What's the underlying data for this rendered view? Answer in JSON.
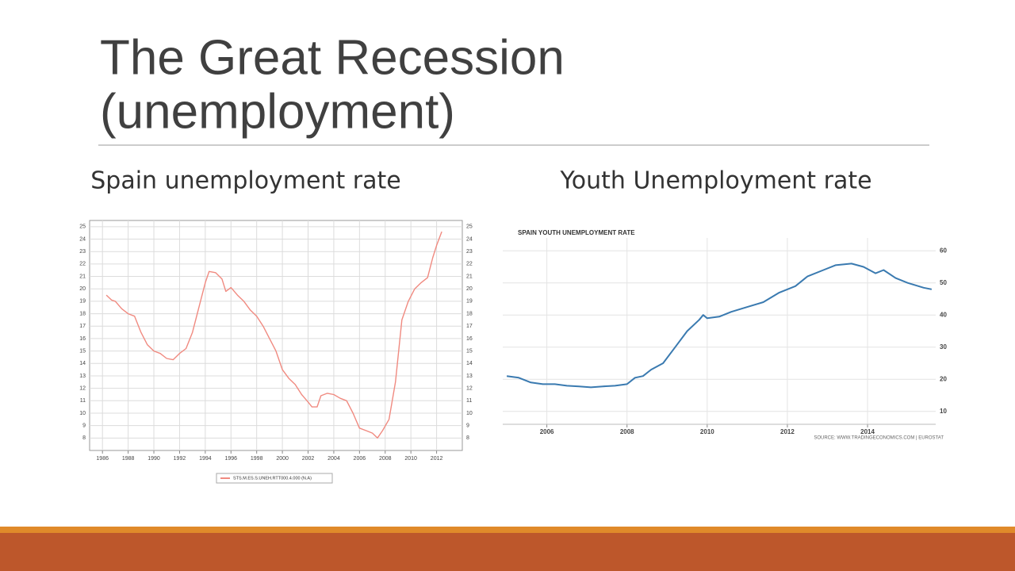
{
  "slide": {
    "title": [
      "The Great Recession",
      "(unemployment)"
    ],
    "headings": [
      "Spain unemployment rate",
      "Youth Unemployment rate"
    ]
  },
  "chart_data": [
    {
      "type": "line",
      "x": [
        1986.3,
        1986.7,
        1987.0,
        1987.5,
        1988.0,
        1988.5,
        1989.0,
        1989.5,
        1990.0,
        1990.5,
        1991.0,
        1991.5,
        1992.0,
        1992.5,
        1993.0,
        1993.5,
        1994.0,
        1994.3,
        1994.8,
        1995.3,
        1995.6,
        1996.0,
        1996.5,
        1997.0,
        1997.5,
        1998.0,
        1998.5,
        1999.0,
        1999.5,
        2000.0,
        2000.5,
        2001.0,
        2001.5,
        2002.0,
        2002.3,
        2002.7,
        2003.0,
        2003.5,
        2004.0,
        2004.5,
        2005.0,
        2005.5,
        2006.0,
        2006.5,
        2007.0,
        2007.4,
        2007.8,
        2008.3,
        2008.8,
        2009.3,
        2009.8,
        2010.3,
        2010.8,
        2011.3,
        2011.7,
        2012.0,
        2012.4
      ],
      "series": [
        {
          "name": "STS.M.ES.S.UNEH.RTT000.4.000 (N.A)",
          "color": "#f08a80",
          "values": [
            19.5,
            19.1,
            19.0,
            18.4,
            18.0,
            17.8,
            16.5,
            15.5,
            15.0,
            14.8,
            14.4,
            14.3,
            14.8,
            15.2,
            16.5,
            18.5,
            20.5,
            21.4,
            21.3,
            20.8,
            19.8,
            20.1,
            19.5,
            19.0,
            18.3,
            17.8,
            17.0,
            16.0,
            15.0,
            13.5,
            12.8,
            12.3,
            11.5,
            10.9,
            10.5,
            10.5,
            11.4,
            11.6,
            11.5,
            11.2,
            11.0,
            10.0,
            8.8,
            8.6,
            8.4,
            8.0,
            8.6,
            9.5,
            12.5,
            17.5,
            19.0,
            20.0,
            20.5,
            20.9,
            22.5,
            23.5,
            24.6
          ]
        }
      ],
      "xlim": [
        1985,
        2014
      ],
      "xticks": [
        1986,
        1988,
        1990,
        1992,
        1994,
        1996,
        1998,
        2000,
        2002,
        2004,
        2006,
        2008,
        2010,
        2012
      ],
      "ylim": [
        7,
        25.5
      ],
      "yticks": [
        8,
        9,
        10,
        11,
        12,
        13,
        14,
        15,
        16,
        17,
        18,
        19,
        20,
        21,
        22,
        23,
        24,
        25
      ],
      "grid": true
    },
    {
      "type": "line",
      "title": "SPAIN YOUTH UNEMPLOYMENT RATE",
      "source": "SOURCE: WWW.TRADINGECONOMICS.COM | EUROSTAT",
      "x": [
        2005.0,
        2005.3,
        2005.6,
        2005.9,
        2006.2,
        2006.5,
        2006.8,
        2007.1,
        2007.4,
        2007.7,
        2008.0,
        2008.2,
        2008.4,
        2008.6,
        2008.9,
        2009.2,
        2009.5,
        2009.8,
        2009.9,
        2010.0,
        2010.3,
        2010.6,
        2011.0,
        2011.4,
        2011.8,
        2012.2,
        2012.5,
        2012.9,
        2013.2,
        2013.6,
        2013.9,
        2014.2,
        2014.4,
        2014.7,
        2015.0,
        2015.4,
        2015.6
      ],
      "series": [
        {
          "color": "#3a7ab0",
          "values": [
            21.0,
            20.5,
            19.0,
            18.5,
            18.5,
            18.0,
            17.8,
            17.5,
            17.8,
            18.0,
            18.5,
            20.5,
            21.0,
            23.0,
            25.0,
            30.0,
            35.0,
            38.5,
            40.0,
            39.0,
            39.5,
            41.0,
            42.5,
            44.0,
            47.0,
            49.0,
            52.0,
            54.0,
            55.5,
            56.0,
            55.0,
            53.0,
            54.0,
            51.5,
            50.0,
            48.5,
            48.0
          ]
        }
      ],
      "xlim": [
        2004.9,
        2015.7
      ],
      "xticks": [
        2006,
        2008,
        2010,
        2012,
        2014
      ],
      "ylim": [
        6,
        64
      ],
      "yticks": [
        10,
        20,
        30,
        40,
        50,
        60
      ],
      "grid": true
    }
  ]
}
